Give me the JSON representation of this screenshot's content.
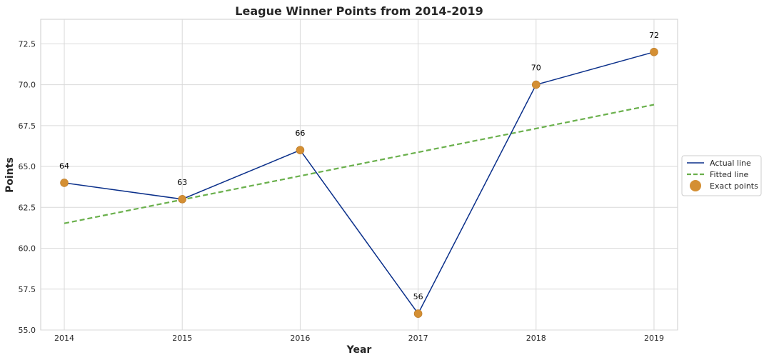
{
  "chart_data": {
    "type": "line",
    "title": "League Winner Points from 2014-2019",
    "xlabel": "Year",
    "ylabel": "Points",
    "x": [
      2014,
      2015,
      2016,
      2017,
      2018,
      2019
    ],
    "x_ticks": [
      "2014",
      "2015",
      "2016",
      "2017",
      "2018",
      "2019"
    ],
    "y_ticks": [
      "55.0",
      "57.5",
      "60.0",
      "62.5",
      "65.0",
      "67.5",
      "70.0",
      "72.5"
    ],
    "xlim": [
      2013.8,
      2019.2
    ],
    "ylim": [
      55.0,
      74.0
    ],
    "grid": true,
    "legend_position": "center-right",
    "series": [
      {
        "name": "Actual line",
        "kind": "line",
        "color": "#0a2f8a",
        "values": [
          64,
          63,
          66,
          56,
          70,
          72
        ]
      },
      {
        "name": "Fitted line",
        "kind": "dashed-line",
        "color": "#6ab04c",
        "values": [
          61.52,
          62.97,
          64.42,
          65.87,
          67.32,
          68.78
        ]
      },
      {
        "name": "Exact points",
        "kind": "scatter",
        "color": "#d48f33",
        "values": [
          64,
          63,
          66,
          56,
          70,
          72
        ]
      }
    ],
    "data_labels": [
      "64",
      "63",
      "66",
      "56",
      "70",
      "72"
    ]
  }
}
